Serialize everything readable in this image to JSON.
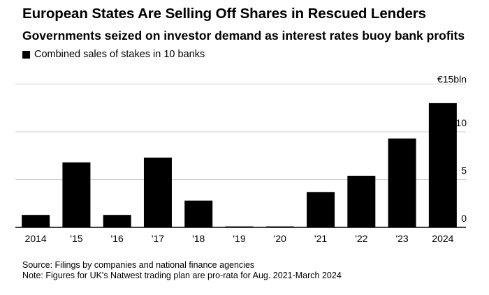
{
  "header": {
    "title": "European States Are Selling Off Shares in Rescued Lenders",
    "subtitle": "Governments seized on investor demand as interest rates buoy bank profits"
  },
  "footer": {
    "source": "Source: Filings by companies and national finance agencies",
    "note": "Note: Figures for UK's Natwest trading plan are pro-rata for Aug. 2021-March 2024"
  },
  "chart_data": {
    "type": "bar",
    "title": "European States Are Selling Off Shares in Rescued Lenders",
    "subtitle": "Governments seized on investor demand as interest rates buoy bank profits",
    "categories": [
      "2014",
      "'15",
      "'16",
      "'17",
      "'18",
      "'19",
      "'20",
      "'21",
      "'22",
      "'23",
      "2024"
    ],
    "series": [
      {
        "name": "Combined sales of stakes in 10 banks",
        "values": [
          1.3,
          6.8,
          1.3,
          7.3,
          2.8,
          0.1,
          0.1,
          3.7,
          5.4,
          9.3,
          13.0
        ],
        "color": "#000000"
      }
    ],
    "yticks": [
      {
        "value": 0,
        "label": "0"
      },
      {
        "value": 5,
        "label": "5"
      },
      {
        "value": 10,
        "label": "10"
      },
      {
        "value": 15,
        "label": "€15bln"
      }
    ],
    "ylim": [
      0,
      15
    ],
    "xlabel": "",
    "ylabel": "",
    "y_axis_side": "right",
    "grid": true,
    "legend": "top-left",
    "colors": {
      "bar": "#000000",
      "grid": "#cccccc",
      "axis": "#000000"
    }
  }
}
